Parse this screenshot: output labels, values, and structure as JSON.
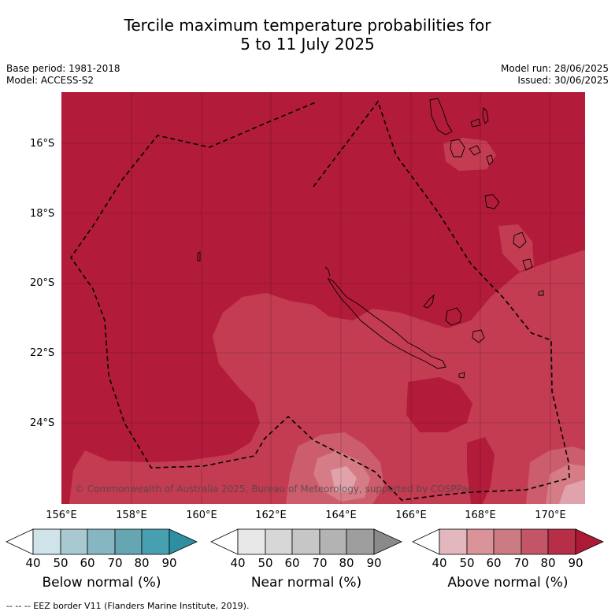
{
  "title": {
    "line1": "Tercile maximum temperature probabilities for",
    "line2": "5 to 11 July 2025"
  },
  "meta": {
    "base_period": "Base period: 1981-2018",
    "model": "Model: ACCESS-S2",
    "model_run": "Model run: 28/06/2025",
    "issued": "Issued: 30/06/2025"
  },
  "axes": {
    "latitudes": [
      "16°S",
      "18°S",
      "20°S",
      "22°S",
      "24°S"
    ],
    "longitudes": [
      "156°E",
      "158°E",
      "160°E",
      "162°E",
      "164°E",
      "166°E",
      "168°E",
      "170°E"
    ]
  },
  "credit": "© Commonwealth of Australia 2025, Bureau of Meteorology, supported by COSPPac",
  "colorbars": [
    {
      "label": "Below normal (%)",
      "ticks": [
        "40",
        "50",
        "60",
        "70",
        "80",
        "90"
      ],
      "colors": [
        "#ffffff",
        "#cfe3e8",
        "#a8c9d0",
        "#85b6c1",
        "#66a6b3",
        "#46a0b0",
        "#2e8fa2"
      ]
    },
    {
      "label": "Near normal (%)",
      "ticks": [
        "40",
        "50",
        "60",
        "70",
        "80",
        "90"
      ],
      "colors": [
        "#ffffff",
        "#e8e8e8",
        "#d7d7d7",
        "#c6c6c6",
        "#b3b3b3",
        "#9e9e9e",
        "#8a8a8a"
      ]
    },
    {
      "label": "Above normal (%)",
      "ticks": [
        "40",
        "50",
        "60",
        "70",
        "80",
        "90"
      ],
      "colors": [
        "#ffffff",
        "#e2b7be",
        "#d99399",
        "#cd7b83",
        "#c45566",
        "#b72e47",
        "#ad1a36"
      ]
    }
  ],
  "map_colors": {
    "above_90": "#b21c3a",
    "above_80": "#c33c52",
    "above_70": "#cc5d6c",
    "above_60": "#d67c87",
    "above_50": "#e0a3ab"
  },
  "footnote": "--  --  -- EEZ border V11 (Flanders Marine Institute, 2019)."
}
